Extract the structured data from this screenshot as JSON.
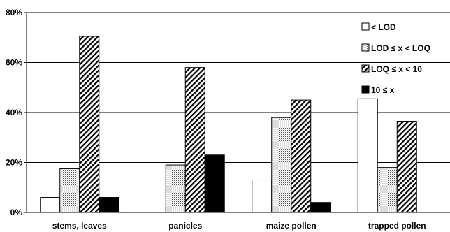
{
  "chart_data": {
    "type": "bar",
    "title": "",
    "xlabel": "",
    "ylabel": "",
    "ylim": [
      0,
      80
    ],
    "yticks": [
      0,
      20,
      40,
      60,
      80
    ],
    "ytick_labels": [
      "0%",
      "20%",
      "40%",
      "60%",
      "80%"
    ],
    "grid": "horizontal",
    "legend_position": "top-right",
    "categories": [
      "stems, leaves",
      "panicles",
      "maize pollen",
      "trapped pollen"
    ],
    "series": [
      {
        "name": "< LOD",
        "values": [
          6,
          0,
          13,
          45.5
        ],
        "fill": "white"
      },
      {
        "name": "LOD ≤ x < LOQ",
        "values": [
          17.5,
          19,
          38,
          18
        ],
        "fill": "dotted"
      },
      {
        "name": "LOQ ≤ x < 10",
        "values": [
          70.5,
          58,
          45,
          36.5
        ],
        "fill": "hatched"
      },
      {
        "name": "10 ≤ x",
        "values": [
          6,
          23,
          4,
          0
        ],
        "fill": "black"
      }
    ]
  }
}
